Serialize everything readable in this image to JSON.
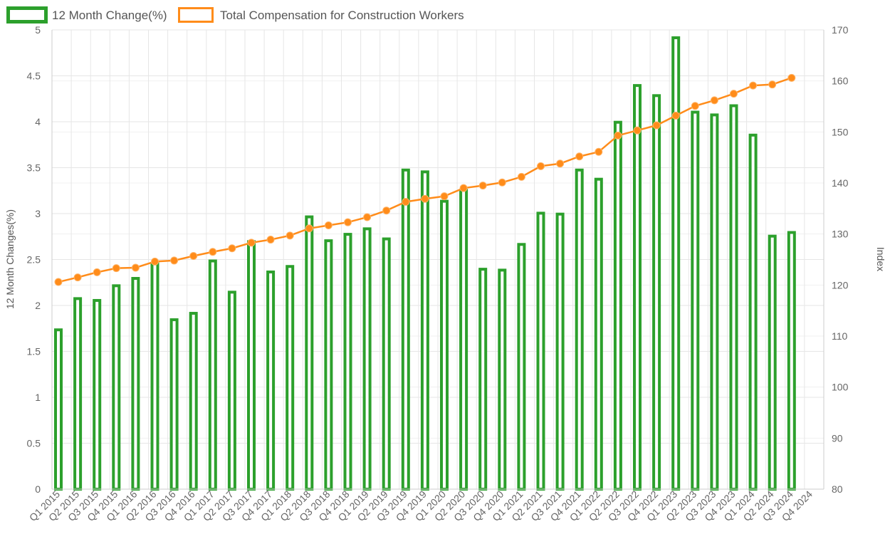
{
  "chart_data": {
    "type": "bar",
    "categories": [
      "Q1 2015",
      "Q2 2015",
      "Q3 2015",
      "Q4 2015",
      "Q1 2016",
      "Q2 2016",
      "Q3 2016",
      "Q4 2016",
      "Q1 2017",
      "Q2 2017",
      "Q3 2017",
      "Q4 2017",
      "Q1 2018",
      "Q2 2018",
      "Q3 2018",
      "Q4 2018",
      "Q1 2019",
      "Q2 2019",
      "Q3 2019",
      "Q4 2019",
      "Q1 2020",
      "Q2 2020",
      "Q3 2020",
      "Q4 2020",
      "Q1 2021",
      "Q2 2021",
      "Q3 2021",
      "Q4 2021",
      "Q1 2022",
      "Q2 2022",
      "Q3 2022",
      "Q4 2022",
      "Q1 2023",
      "Q2 2023",
      "Q3 2023",
      "Q4 2023",
      "Q1 2024",
      "Q2 2024",
      "Q3 2024",
      "Q4 2024"
    ],
    "series": [
      {
        "name": "12 Month Change(%)",
        "type": "bar",
        "axis": "left",
        "color": "#2ca02c",
        "values": [
          1.75,
          2.09,
          2.07,
          2.23,
          2.31,
          2.47,
          1.86,
          1.93,
          2.5,
          2.16,
          2.71,
          2.38,
          2.44,
          2.98,
          2.72,
          2.79,
          2.85,
          2.74,
          3.49,
          3.47,
          3.15,
          3.27,
          2.41,
          2.4,
          2.68,
          3.02,
          3.01,
          3.49,
          3.39,
          4.01,
          4.41,
          4.3,
          4.93,
          4.12,
          4.09,
          4.19,
          3.87,
          2.77,
          2.81,
          null
        ]
      },
      {
        "name": "Total Compensation for Construction Workers",
        "type": "line",
        "axis": "right",
        "color": "#ff8c1a",
        "values": [
          120.6,
          121.5,
          122.5,
          123.3,
          123.4,
          124.6,
          124.8,
          125.7,
          126.5,
          127.2,
          128.3,
          128.9,
          129.7,
          131.1,
          131.7,
          132.3,
          133.3,
          134.6,
          136.3,
          136.9,
          137.4,
          139.0,
          139.5,
          140.1,
          141.2,
          143.3,
          143.8,
          145.2,
          146.1,
          149.3,
          150.3,
          151.3,
          153.2,
          155.1,
          156.2,
          157.5,
          159.1,
          159.3,
          160.6,
          null
        ]
      }
    ],
    "ylabel": "12 Month Changes(%)",
    "ylim": [
      0,
      5
    ],
    "yticks": [
      "0",
      "0.5",
      "1",
      "1.5",
      "2",
      "2.5",
      "3",
      "3.5",
      "4",
      "4.5",
      "5"
    ],
    "y2label": "Index",
    "y2lim": [
      80,
      170
    ],
    "y2ticks": [
      "80",
      "90",
      "100",
      "110",
      "120",
      "130",
      "140",
      "150",
      "160",
      "170"
    ],
    "grid": true,
    "legend_position": "top-left"
  }
}
